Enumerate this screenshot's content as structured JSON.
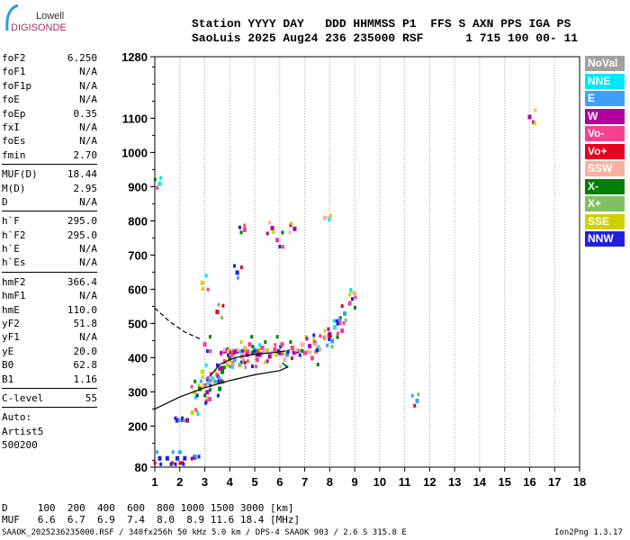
{
  "logo": {
    "line1": "Lowell",
    "line2": "DIGISONDE"
  },
  "header": {
    "line1": "Station YYYY DAY   DDD HHMMSS P1  FFS S AXN PPS IGA PS",
    "line2": "SaoLuis 2025 Aug24 236 235000 RSF      1 715 100 00- 11"
  },
  "params": [
    [
      {
        "k": "foF2",
        "v": "6.250"
      },
      {
        "k": "foF1",
        "v": "N/A"
      },
      {
        "k": "foF1p",
        "v": "N/A"
      },
      {
        "k": "foE",
        "v": "N/A"
      },
      {
        "k": "foEp",
        "v": "0.35"
      },
      {
        "k": "fxI",
        "v": "N/A"
      },
      {
        "k": "foEs",
        "v": "N/A"
      },
      {
        "k": "fmin",
        "v": "2.70"
      }
    ],
    [
      {
        "k": "MUF(D)",
        "v": "18.44"
      },
      {
        "k": "M(D)",
        "v": "2.95"
      },
      {
        "k": "D",
        "v": "N/A"
      }
    ],
    [
      {
        "k": "h`F",
        "v": "295.0"
      },
      {
        "k": "h`F2",
        "v": "295.0"
      },
      {
        "k": "h`E",
        "v": "N/A"
      },
      {
        "k": "h`Es",
        "v": "N/A"
      }
    ],
    [
      {
        "k": "hmF2",
        "v": "366.4"
      },
      {
        "k": "hmF1",
        "v": "N/A"
      },
      {
        "k": "hmE",
        "v": "110.0"
      },
      {
        "k": "yF2",
        "v": "51.8"
      },
      {
        "k": "yF1",
        "v": "N/A"
      },
      {
        "k": "yE",
        "v": "20.0"
      },
      {
        "k": "B0",
        "v": "62.8"
      },
      {
        "k": "B1",
        "v": "1.16"
      }
    ],
    [
      {
        "k": "C-level",
        "v": "55"
      }
    ]
  ],
  "auto": [
    "Auto:",
    "Artist5",
    "500200"
  ],
  "legend": [
    {
      "label": "NoVal",
      "color": "#a0a0a0"
    },
    {
      "label": "NNE",
      "color": "#00e8f8"
    },
    {
      "label": "E",
      "color": "#40a0f8"
    },
    {
      "label": "W",
      "color": "#b000a0"
    },
    {
      "label": "Vo-",
      "color": "#f84090"
    },
    {
      "label": "Vo+",
      "color": "#e80020"
    },
    {
      "label": "SSW",
      "color": "#f8b0a0"
    },
    {
      "label": "X-",
      "color": "#008000"
    },
    {
      "label": "X+",
      "color": "#80c060"
    },
    {
      "label": "SSE",
      "color": "#d0d000"
    },
    {
      "label": "NNW",
      "color": "#2020e0"
    }
  ],
  "chart_data": {
    "type": "scatter",
    "xlabel": "Frequency (MHz)",
    "ylabel": "Virtual height (km)",
    "xlim": [
      1,
      18
    ],
    "ylim": [
      80,
      1280
    ],
    "xticks": [
      "1",
      "2",
      "3",
      "4",
      "5",
      "6",
      "7",
      "8",
      "9",
      "10",
      "11",
      "12",
      "13",
      "14",
      "15",
      "16",
      "17",
      "18"
    ],
    "yticks": [
      {
        "v": 80,
        "l": "80"
      },
      {
        "v": 200,
        "l": "200"
      },
      {
        "v": 300,
        "l": "300"
      },
      {
        "v": 400,
        "l": "400"
      },
      {
        "v": 500,
        "l": "500"
      },
      {
        "v": 600,
        "l": "600"
      },
      {
        "v": 700,
        "l": "700"
      },
      {
        "v": 800,
        "l": "800"
      },
      {
        "v": 900,
        "l": "900"
      },
      {
        "v": 1000,
        "l": "1000"
      },
      {
        "v": 1100,
        "l": "1100"
      },
      {
        "v": 1280,
        "l": "1280"
      }
    ],
    "points": [
      [
        1.2,
        107,
        10
      ],
      [
        1.5,
        107,
        10
      ],
      [
        1.9,
        107,
        10
      ],
      [
        2.2,
        107,
        10
      ],
      [
        2.6,
        110,
        10
      ],
      [
        1.9,
        218,
        10
      ],
      [
        2.3,
        218,
        10
      ],
      [
        2.5,
        240,
        9
      ],
      [
        2.9,
        620,
        9
      ],
      [
        1.2,
        910,
        1
      ],
      [
        4.6,
        775,
        4
      ],
      [
        5.7,
        780,
        3
      ],
      [
        5.9,
        745,
        4
      ],
      [
        6.6,
        778,
        3
      ],
      [
        7.8,
        810,
        6
      ],
      [
        16,
        1105,
        3
      ],
      [
        11.5,
        275,
        2
      ],
      [
        4.3,
        650,
        10
      ],
      [
        3.5,
        535,
        5
      ],
      [
        2.6,
        300,
        9
      ],
      [
        2.8,
        310,
        7
      ],
      [
        3.0,
        320,
        4
      ],
      [
        3.1,
        300,
        3
      ],
      [
        3.3,
        340,
        1
      ],
      [
        3.4,
        330,
        9
      ],
      [
        3.5,
        350,
        4
      ],
      [
        3.6,
        370,
        3
      ],
      [
        3.7,
        360,
        7
      ],
      [
        3.8,
        390,
        4
      ],
      [
        3.9,
        380,
        9
      ],
      [
        4.0,
        400,
        3
      ],
      [
        4.1,
        410,
        4
      ],
      [
        4.2,
        395,
        2
      ],
      [
        4.3,
        420,
        3
      ],
      [
        4.5,
        405,
        4
      ],
      [
        4.6,
        430,
        6
      ],
      [
        4.7,
        410,
        3
      ],
      [
        4.9,
        415,
        4
      ],
      [
        5.0,
        425,
        1
      ],
      [
        5.2,
        410,
        3
      ],
      [
        5.3,
        430,
        4
      ],
      [
        5.5,
        420,
        6
      ],
      [
        5.6,
        405,
        3
      ],
      [
        5.8,
        425,
        4
      ],
      [
        6.0,
        415,
        3
      ],
      [
        6.1,
        440,
        4
      ],
      [
        6.3,
        410,
        2
      ],
      [
        6.5,
        430,
        4
      ],
      [
        6.7,
        420,
        3
      ],
      [
        6.9,
        440,
        6
      ],
      [
        7.0,
        415,
        4
      ],
      [
        7.2,
        435,
        3
      ],
      [
        7.4,
        445,
        4
      ],
      [
        7.6,
        425,
        6
      ],
      [
        7.8,
        460,
        4
      ],
      [
        8.0,
        470,
        3
      ],
      [
        8.2,
        490,
        1
      ],
      [
        8.4,
        510,
        4
      ],
      [
        8.6,
        530,
        2
      ],
      [
        8.8,
        560,
        4
      ],
      [
        9.0,
        590,
        6
      ],
      [
        2.9,
        360,
        9
      ],
      [
        3.2,
        280,
        4
      ],
      [
        3.6,
        310,
        7
      ],
      [
        4.4,
        380,
        8
      ],
      [
        5.1,
        395,
        4
      ],
      [
        6.2,
        395,
        6
      ],
      [
        7.3,
        400,
        4
      ],
      [
        8.1,
        450,
        2
      ],
      [
        8.5,
        480,
        4
      ],
      [
        3.0,
        440,
        4
      ],
      [
        3.8,
        420,
        3
      ],
      [
        4.8,
        440,
        4
      ]
    ],
    "curves": [
      {
        "name": "profile",
        "dashed": false,
        "pts": [
          [
            1,
            250
          ],
          [
            2,
            285
          ],
          [
            3,
            312
          ],
          [
            4,
            333
          ],
          [
            5,
            350
          ],
          [
            6,
            362
          ],
          [
            6.3,
            372
          ],
          [
            6.1,
            385
          ]
        ]
      },
      {
        "name": "trace",
        "dashed": false,
        "pts": [
          [
            3.2,
            345
          ],
          [
            3.6,
            380
          ],
          [
            4.2,
            400
          ],
          [
            5,
            410
          ],
          [
            5.8,
            415
          ],
          [
            6.25,
            420
          ]
        ]
      },
      {
        "name": "topside",
        "dashed": true,
        "pts": [
          [
            1,
            545
          ],
          [
            1.6,
            505
          ],
          [
            2.2,
            475
          ],
          [
            2.8,
            455
          ]
        ]
      }
    ]
  },
  "footer": {
    "d_row": "D     100  200  400  600  800 1000 1500 3000 [km]",
    "muf_row": "MUF   6.6  6.7  6.9  7.4  8.0  8.9 11.6 18.4 [MHz]",
    "file_info": "SAAOK_2025236235000.RSF / 340fx256h 50 kHz 5.0 km / DPS-4 SAAOK 903 / 2.6 S 315.8 E",
    "version": "Ion2Png 1.3.17"
  }
}
